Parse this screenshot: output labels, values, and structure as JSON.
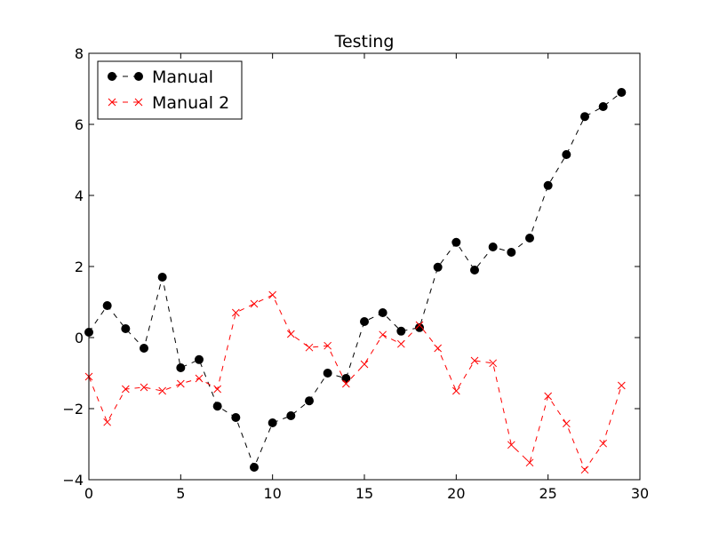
{
  "chart_data": {
    "type": "line",
    "title": "Testing",
    "xlabel": "",
    "ylabel": "",
    "xlim": [
      0,
      30
    ],
    "ylim": [
      -4,
      8
    ],
    "xticks": [
      0,
      5,
      10,
      15,
      20,
      25,
      30
    ],
    "yticks": [
      -4,
      -2,
      0,
      2,
      4,
      6,
      8
    ],
    "grid": false,
    "legend": "top-left",
    "x": [
      0,
      1,
      2,
      3,
      4,
      5,
      6,
      7,
      8,
      9,
      10,
      11,
      12,
      13,
      14,
      15,
      16,
      17,
      18,
      19,
      20,
      21,
      22,
      23,
      24,
      25,
      26,
      27,
      28,
      29
    ],
    "series": [
      {
        "name": "Manual",
        "color": "#000000",
        "marker": "circle",
        "linestyle": "dashed",
        "values": [
          0.15,
          0.9,
          0.25,
          -0.3,
          1.7,
          -0.85,
          -0.62,
          -1.93,
          -2.25,
          -3.65,
          -2.4,
          -2.2,
          -1.78,
          -1.0,
          -1.15,
          0.45,
          0.7,
          0.18,
          0.28,
          1.98,
          2.68,
          1.9,
          2.55,
          2.4,
          2.8,
          4.28,
          5.15,
          6.22,
          6.5,
          6.9
        ]
      },
      {
        "name": "Manual 2",
        "color": "#ff0000",
        "marker": "x",
        "linestyle": "dashed",
        "values": [
          -1.1,
          -2.38,
          -1.45,
          -1.4,
          -1.5,
          -1.3,
          -1.15,
          -1.45,
          0.7,
          0.95,
          1.2,
          0.1,
          -0.28,
          -0.23,
          -1.3,
          -0.75,
          0.08,
          -0.18,
          0.35,
          -0.3,
          -1.5,
          -0.65,
          -0.72,
          -3.02,
          -3.52,
          -1.65,
          -2.42,
          -3.72,
          -2.98,
          -1.35
        ]
      }
    ]
  }
}
